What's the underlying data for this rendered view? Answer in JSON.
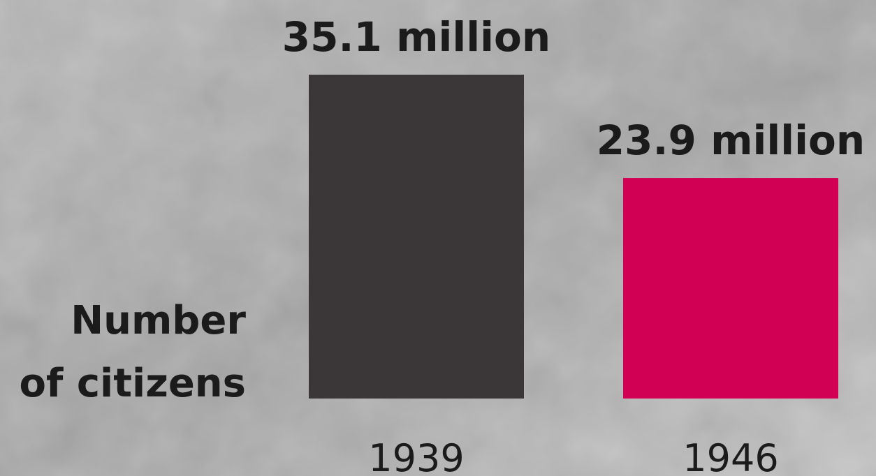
{
  "chart_data": {
    "type": "bar",
    "ylabel": [
      "Number",
      "of citizens"
    ],
    "categories": [
      "1939",
      "1946"
    ],
    "values": [
      35.1,
      23.9
    ],
    "value_labels": [
      "35.1 million",
      "23.9 million"
    ],
    "colors": [
      "#3b3738",
      "#d20055"
    ]
  }
}
